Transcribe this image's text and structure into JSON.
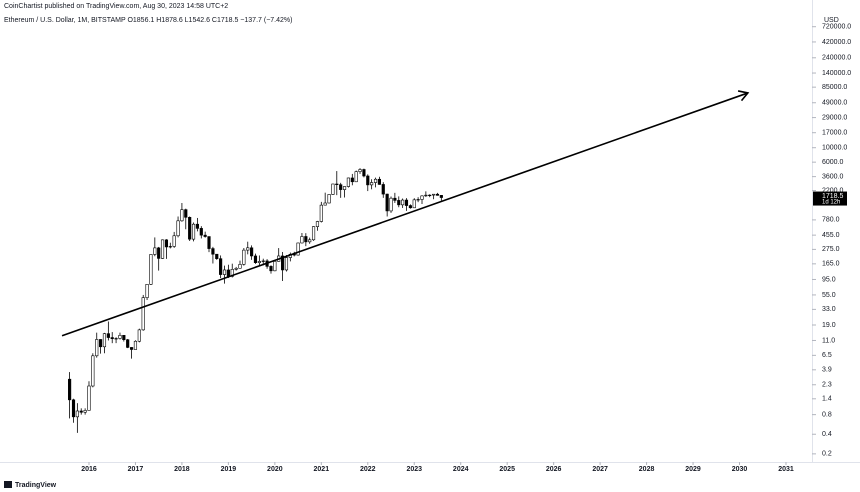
{
  "header": {
    "publisher": "CoinChartist published on TradingView.com, Aug 30, 2023 14:58 UTC+2"
  },
  "footer": {
    "brand": "TradingView"
  },
  "chart_data": {
    "type": "candlestick",
    "legend_line": "Ethereum / U.S. Dollar, 1M, BITSTAMP  O1856.1 H1878.6 L1542.6 C1718.5 −137.7 (−7.42%)",
    "y_axis_unit": "USD",
    "countdown": "1d 12h",
    "log_scale": true,
    "grid": false,
    "up_color": "#ffffff",
    "down_color": "#000000",
    "outline_color": "#000000",
    "xlim": [
      2014.085,
      2031.56
    ],
    "xticks": [
      2016,
      2017,
      2018,
      2019,
      2020,
      2021,
      2022,
      2023,
      2024,
      2025,
      2026,
      2027,
      2028,
      2029,
      2030,
      2031
    ],
    "ylim": [
      0.15,
      1850000
    ],
    "yticks": [
      {
        "value": 720000,
        "label": "720000.0"
      },
      {
        "value": 420000,
        "label": "420000.0"
      },
      {
        "value": 240000,
        "label": "240000.0"
      },
      {
        "value": 140000,
        "label": "140000.0"
      },
      {
        "value": 85000,
        "label": "85000.0"
      },
      {
        "value": 49000,
        "label": "49000.0"
      },
      {
        "value": 29000,
        "label": "29000.0"
      },
      {
        "value": 17000,
        "label": "17000.0"
      },
      {
        "value": 10000,
        "label": "10000.0"
      },
      {
        "value": 6000,
        "label": "6000.0"
      },
      {
        "value": 3600,
        "label": "3600.0"
      },
      {
        "value": 2200,
        "label": "2200.0"
      },
      {
        "value": 780,
        "label": "780.0"
      },
      {
        "value": 455,
        "label": "455.0"
      },
      {
        "value": 275,
        "label": "275.0"
      },
      {
        "value": 165,
        "label": "165.0"
      },
      {
        "value": 95,
        "label": "95.0"
      },
      {
        "value": 55,
        "label": "55.0"
      },
      {
        "value": 33,
        "label": "33.0"
      },
      {
        "value": 19,
        "label": "19.0"
      },
      {
        "value": 11,
        "label": "11.0"
      },
      6.5,
      3.9,
      2.3,
      1.4,
      0.8,
      0.4,
      0.2
    ],
    "x": [
      2015.583,
      2015.667,
      2015.75,
      2015.833,
      2015.917,
      2016,
      2016.083,
      2016.167,
      2016.25,
      2016.333,
      2016.417,
      2016.5,
      2016.583,
      2016.667,
      2016.75,
      2016.833,
      2016.917,
      2017,
      2017.083,
      2017.167,
      2017.25,
      2017.333,
      2017.417,
      2017.5,
      2017.583,
      2017.667,
      2017.75,
      2017.833,
      2017.917,
      2018,
      2018.083,
      2018.167,
      2018.25,
      2018.333,
      2018.417,
      2018.5,
      2018.583,
      2018.667,
      2018.75,
      2018.833,
      2018.917,
      2019,
      2019.083,
      2019.167,
      2019.25,
      2019.333,
      2019.417,
      2019.5,
      2019.583,
      2019.667,
      2019.75,
      2019.833,
      2019.917,
      2020,
      2020.083,
      2020.167,
      2020.25,
      2020.333,
      2020.417,
      2020.5,
      2020.583,
      2020.667,
      2020.75,
      2020.833,
      2020.917,
      2021,
      2021.083,
      2021.167,
      2021.25,
      2021.333,
      2021.417,
      2021.5,
      2021.583,
      2021.667,
      2021.75,
      2021.833,
      2021.917,
      2022,
      2022.083,
      2022.167,
      2022.25,
      2022.333,
      2022.417,
      2022.5,
      2022.583,
      2022.667,
      2022.75,
      2022.833,
      2022.917,
      2023,
      2023.083,
      2023.167,
      2023.25,
      2023.333,
      2023.417,
      2023.5,
      2023.583
    ],
    "open": [
      2.8,
      1.35,
      0.74,
      0.91,
      0.87,
      0.93,
      2.2,
      6.4,
      11.4,
      8.8,
      14.0,
      12.2,
      11.7,
      11.8,
      13.2,
      11.3,
      8.6,
      8.0,
      10.7,
      16,
      50,
      80,
      230,
      290,
      200,
      385,
      300,
      305,
      445,
      755,
      1120,
      855,
      395,
      670,
      578,
      455,
      433,
      283,
      232,
      198,
      113,
      133,
      106,
      136,
      141,
      162,
      268,
      291,
      218,
      172,
      180,
      183,
      151,
      129,
      180,
      218,
      133,
      206,
      231,
      225,
      345,
      434,
      359,
      386,
      615,
      737,
      1314,
      1417,
      1918,
      2773,
      2707,
      2275,
      2536,
      3433,
      3000,
      4288,
      4631,
      3682,
      2688,
      2920,
      3282,
      2730,
      1942,
      1071,
      1679,
      1554,
      1328,
      1572,
      1295,
      1196,
      1585,
      1605,
      1822,
      1870,
      1874,
      1934,
      1856.1
    ],
    "high": [
      3.6,
      1.4,
      1.2,
      1.0,
      1.0,
      2.6,
      7.0,
      14.5,
      11.5,
      14.4,
      21.5,
      14.8,
      12.3,
      14.5,
      13.2,
      11.6,
      8.7,
      11.1,
      16.7,
      55,
      80,
      232,
      420,
      300,
      391,
      395,
      348,
      510,
      880,
      1420,
      1160,
      880,
      710,
      835,
      625,
      515,
      436,
      300,
      233,
      222,
      155,
      160,
      166,
      148,
      185,
      289,
      361,
      317,
      237,
      222,
      198,
      195,
      157,
      186,
      288,
      251,
      226,
      246,
      253,
      350,
      490,
      488,
      417,
      622,
      755,
      1474,
      2042,
      1943,
      2797,
      4380,
      2890,
      2550,
      3470,
      3960,
      4460,
      4870,
      4780,
      3900,
      3280,
      3480,
      3580,
      2960,
      1970,
      1780,
      2030,
      1790,
      1660,
      1680,
      1350,
      1680,
      1740,
      1860,
      2140,
      1930,
      1940,
      2030,
      1878.6
    ],
    "low": [
      0.7,
      0.6,
      0.42,
      0.8,
      0.8,
      0.93,
      2.1,
      6.0,
      6.9,
      7.0,
      11.0,
      10.0,
      10.0,
      11.4,
      10.6,
      8.4,
      5.8,
      8.0,
      10.3,
      15.5,
      46,
      78,
      216,
      130,
      197,
      197,
      285,
      290,
      420,
      730,
      560,
      370,
      365,
      520,
      405,
      416,
      250,
      167,
      190,
      100,
      82,
      100,
      102,
      130,
      141,
      155,
      231,
      190,
      165,
      152,
      156,
      139,
      117,
      127,
      178,
      90,
      126,
      180,
      215,
      221,
      339,
      308,
      335,
      372,
      532,
      712,
      1300,
      1400,
      1878,
      1870,
      1700,
      1720,
      2450,
      2650,
      2970,
      3960,
      3500,
      2160,
      2300,
      2460,
      2700,
      1700,
      880,
      1000,
      1420,
      1220,
      1190,
      1075,
      1160,
      1190,
      1460,
      1370,
      1760,
      1740,
      1620,
      1840,
      1542.6
    ],
    "close": [
      1.35,
      0.74,
      0.91,
      0.87,
      0.93,
      2.2,
      6.4,
      11.4,
      8.8,
      14.0,
      12.2,
      11.7,
      11.8,
      13.2,
      11.3,
      8.6,
      8.0,
      10.7,
      16,
      50,
      80,
      230,
      290,
      200,
      385,
      300,
      305,
      445,
      755,
      1120,
      855,
      395,
      670,
      578,
      455,
      433,
      283,
      232,
      198,
      113,
      133,
      106,
      136,
      141,
      162,
      268,
      291,
      218,
      172,
      180,
      183,
      151,
      129,
      180,
      218,
      133,
      206,
      231,
      225,
      345,
      434,
      359,
      386,
      615,
      737,
      1314,
      1417,
      1918,
      2773,
      2707,
      2275,
      2536,
      3433,
      3000,
      4288,
      4631,
      3682,
      2688,
      2920,
      3282,
      2730,
      1942,
      1071,
      1679,
      1554,
      1328,
      1572,
      1295,
      1196,
      1585,
      1605,
      1822,
      1870,
      1874,
      1934,
      1856.1,
      1718.5
    ],
    "trendline": {
      "color": "#000000",
      "x": [
        2015.42,
        2030.18
      ],
      "y": [
        13,
        69300
      ]
    }
  }
}
